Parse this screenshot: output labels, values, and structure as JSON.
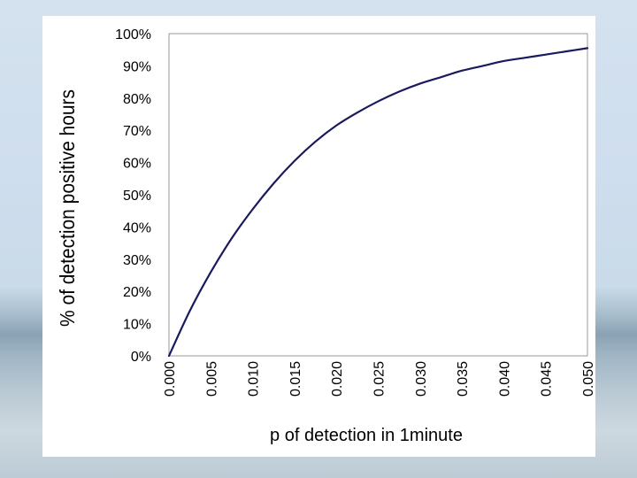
{
  "chart_data": {
    "type": "line",
    "xlabel": "p of detection in 1minute",
    "ylabel": "% of detection positive hours",
    "xlim": [
      0.0,
      0.05
    ],
    "ylim": [
      0,
      100
    ],
    "x_ticks": [
      "0.000",
      "0.005",
      "0.010",
      "0.015",
      "0.020",
      "0.025",
      "0.030",
      "0.035",
      "0.040",
      "0.045",
      "0.050"
    ],
    "y_ticks": [
      "0%",
      "10%",
      "20%",
      "30%",
      "40%",
      "50%",
      "60%",
      "70%",
      "80%",
      "90%",
      "100%"
    ],
    "grid": false,
    "legend": "none",
    "line_color": "#1a1a5e",
    "series": [
      {
        "x": [
          0.0,
          0.0025,
          0.005,
          0.0075,
          0.01,
          0.0125,
          0.015,
          0.0175,
          0.02,
          0.0225,
          0.025,
          0.0275,
          0.03,
          0.0325,
          0.035,
          0.0375,
          0.04,
          0.0425,
          0.045,
          0.0475,
          0.05
        ],
        "y": [
          0,
          14,
          26,
          36.5,
          45.5,
          53.5,
          60.5,
          66.5,
          71.5,
          75.5,
          79,
          82,
          84.5,
          86.5,
          88.5,
          90,
          91.5,
          92.5,
          93.5,
          94.5,
          95.5
        ]
      }
    ]
  }
}
